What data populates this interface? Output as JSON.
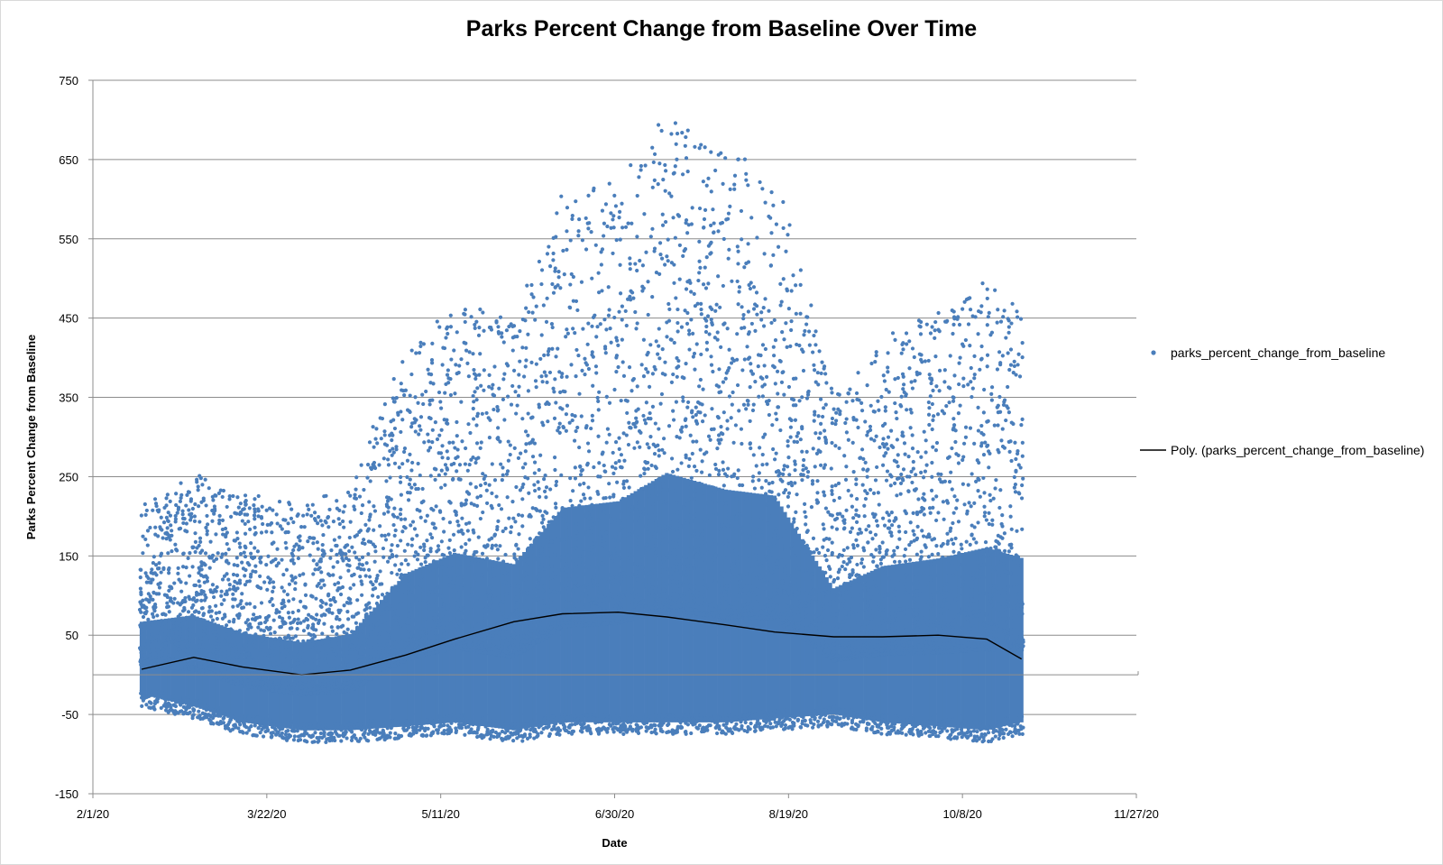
{
  "chart_data": {
    "type": "scatter",
    "title": "Parks Percent Change from Baseline Over Time",
    "xlabel": "Date",
    "ylabel": "Parks Percent Change from Baseline",
    "xlim": [
      "2020-02-01",
      "2020-11-27"
    ],
    "ylim": [
      -150,
      750
    ],
    "x_tick_labels": [
      "2/1/20",
      "3/22/20",
      "5/11/20",
      "6/30/20",
      "8/19/20",
      "10/8/20",
      "11/27/20"
    ],
    "y_tick_labels": [
      "-150",
      "-50",
      "50",
      "150",
      "250",
      "350",
      "450",
      "550",
      "650",
      "750"
    ],
    "grid": "horizontal",
    "legend_position": "right",
    "series": [
      {
        "name": "parks_percent_change_from_baseline",
        "kind": "scatter",
        "color": "#4a7ebb",
        "points_summary": [
          {
            "x": "2020-02-15",
            "y_low": -40,
            "y_high": 215
          },
          {
            "x": "2020-03-01",
            "y_low": -55,
            "y_high": 255
          },
          {
            "x": "2020-03-15",
            "y_low": -75,
            "y_high": 230
          },
          {
            "x": "2020-04-01",
            "y_low": -85,
            "y_high": 215
          },
          {
            "x": "2020-04-15",
            "y_low": -85,
            "y_high": 240
          },
          {
            "x": "2020-05-01",
            "y_low": -80,
            "y_high": 415
          },
          {
            "x": "2020-05-15",
            "y_low": -75,
            "y_high": 470
          },
          {
            "x": "2020-06-01",
            "y_low": -85,
            "y_high": 450
          },
          {
            "x": "2020-06-15",
            "y_low": -75,
            "y_high": 605
          },
          {
            "x": "2020-07-01",
            "y_low": -75,
            "y_high": 625
          },
          {
            "x": "2020-07-15",
            "y_low": -75,
            "y_high": 710
          },
          {
            "x": "2020-08-01",
            "y_low": -75,
            "y_high": 660
          },
          {
            "x": "2020-08-15",
            "y_low": -70,
            "y_high": 635
          },
          {
            "x": "2020-09-01",
            "y_low": -65,
            "y_high": 350
          },
          {
            "x": "2020-09-15",
            "y_low": -75,
            "y_high": 430
          },
          {
            "x": "2020-10-01",
            "y_low": -80,
            "y_high": 460
          },
          {
            "x": "2020-10-15",
            "y_low": -85,
            "y_high": 500
          },
          {
            "x": "2020-10-25",
            "y_low": -75,
            "y_high": 455
          }
        ]
      },
      {
        "name": "Poly. (parks_percent_change_from_baseline)",
        "kind": "trendline",
        "color": "#000000",
        "x": [
          "2020-02-15",
          "2020-03-01",
          "2020-03-15",
          "2020-04-01",
          "2020-04-15",
          "2020-05-01",
          "2020-05-15",
          "2020-06-01",
          "2020-06-15",
          "2020-07-01",
          "2020-07-15",
          "2020-08-01",
          "2020-08-15",
          "2020-09-01",
          "2020-09-15",
          "2020-10-01",
          "2020-10-15",
          "2020-10-25"
        ],
        "y": [
          7,
          22,
          10,
          0,
          6,
          25,
          45,
          67,
          77,
          79,
          73,
          63,
          54,
          48,
          48,
          50,
          45,
          20
        ]
      }
    ]
  }
}
